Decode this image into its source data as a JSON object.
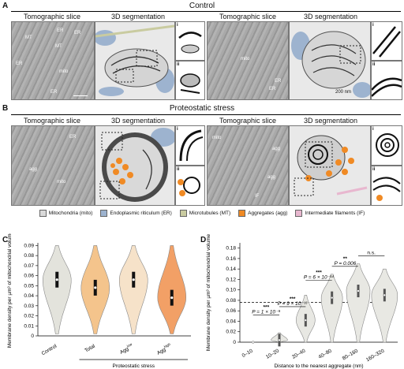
{
  "panels": {
    "A": {
      "letter": "A",
      "title": "Control"
    },
    "B": {
      "letter": "B",
      "title": "Proteostatic stress"
    },
    "C": {
      "letter": "C"
    },
    "D": {
      "letter": "D"
    }
  },
  "headers": {
    "tomo": "Tomographic slice",
    "seg": "3D segmentation"
  },
  "labels_A1": [
    "MT",
    "ER",
    "ER",
    "MT",
    "mito",
    "ER",
    "ER"
  ],
  "labels_A2": [
    "mito",
    "ER",
    "ER"
  ],
  "labels_B1": [
    "ER",
    "agg",
    "mito"
  ],
  "labels_B2": [
    "mito",
    "agg",
    "agg",
    "IF"
  ],
  "scale": "200 nm",
  "inset_ids": [
    "i",
    "ii"
  ],
  "legend": [
    {
      "label": "Mitochondria (mito)",
      "color": "#d9d9d9"
    },
    {
      "label": "Endoplasmic riticulum (ER)",
      "color": "#9db3cf"
    },
    {
      "label": "Microtubules (MT)",
      "color": "#c9cba0"
    },
    {
      "label": "Aggregates (agg)",
      "color": "#f08a24"
    },
    {
      "label": "Intermediate filaments (IF)",
      "color": "#e8b7cf"
    }
  ],
  "chart_data": [
    {
      "type": "violin",
      "ylabel": "Membrane density per µm³ of mitochondrial volume",
      "ylim": [
        0,
        0.19
      ],
      "yticks": [
        0,
        0.01,
        0.02,
        0.03,
        0.04,
        0.05,
        0.06,
        0.07,
        0.08,
        0.09
      ],
      "categories": [
        "Control",
        "Total",
        "Agg^low",
        "Agg^high"
      ],
      "category_display": [
        [
          "Control",
          ""
        ],
        [
          "Total",
          ""
        ],
        [
          "Agg",
          "low"
        ],
        [
          "Agg",
          "high"
        ]
      ],
      "medians": [
        0.056,
        0.048,
        0.056,
        0.038
      ],
      "group_label": "Proteostatic stress",
      "colors": [
        "#e3e3dc",
        "#f4c48c",
        "#f6e2c9",
        "#f2a066"
      ],
      "annotations": [
        {
          "from": 0,
          "to": 1,
          "text": "n.s."
        },
        {
          "from": 0,
          "to": 2,
          "text": "n.s."
        },
        {
          "from": 0,
          "to": 3,
          "text": "***"
        },
        {
          "text": "P = 9 × 10⁻⁴"
        }
      ]
    },
    {
      "type": "violin",
      "ylabel": "Membrane density per µm³ of mitochondrial volume",
      "xlabel": "Distance to the nearest aggregate (nm)",
      "ylim": [
        0,
        0.19
      ],
      "yticks": [
        0,
        0.02,
        0.04,
        0.06,
        0.08,
        0.1,
        0.12,
        0.14,
        0.16,
        0.18
      ],
      "categories": [
        "0–10",
        "10–20",
        "20–40",
        "40–80",
        "80–160",
        "160–320"
      ],
      "medians": [
        0.0,
        0.004,
        0.042,
        0.085,
        0.098,
        0.09
      ],
      "reference_line": 0.076,
      "annotations": [
        {
          "from": 0,
          "to": 1,
          "stars": "***",
          "p": "P = 1 × 10⁻⁹"
        },
        {
          "from": 1,
          "to": 2,
          "stars": "***",
          "p": "P = 9 × 10⁻¹⁸"
        },
        {
          "from": 2,
          "to": 3,
          "stars": "***",
          "p": "P = 6 × 10⁻¹⁴"
        },
        {
          "from": 3,
          "to": 4,
          "stars": "**",
          "p": "P = 0.006"
        },
        {
          "from": 4,
          "to": 5,
          "stars": "n.s.",
          "p": ""
        }
      ]
    }
  ]
}
